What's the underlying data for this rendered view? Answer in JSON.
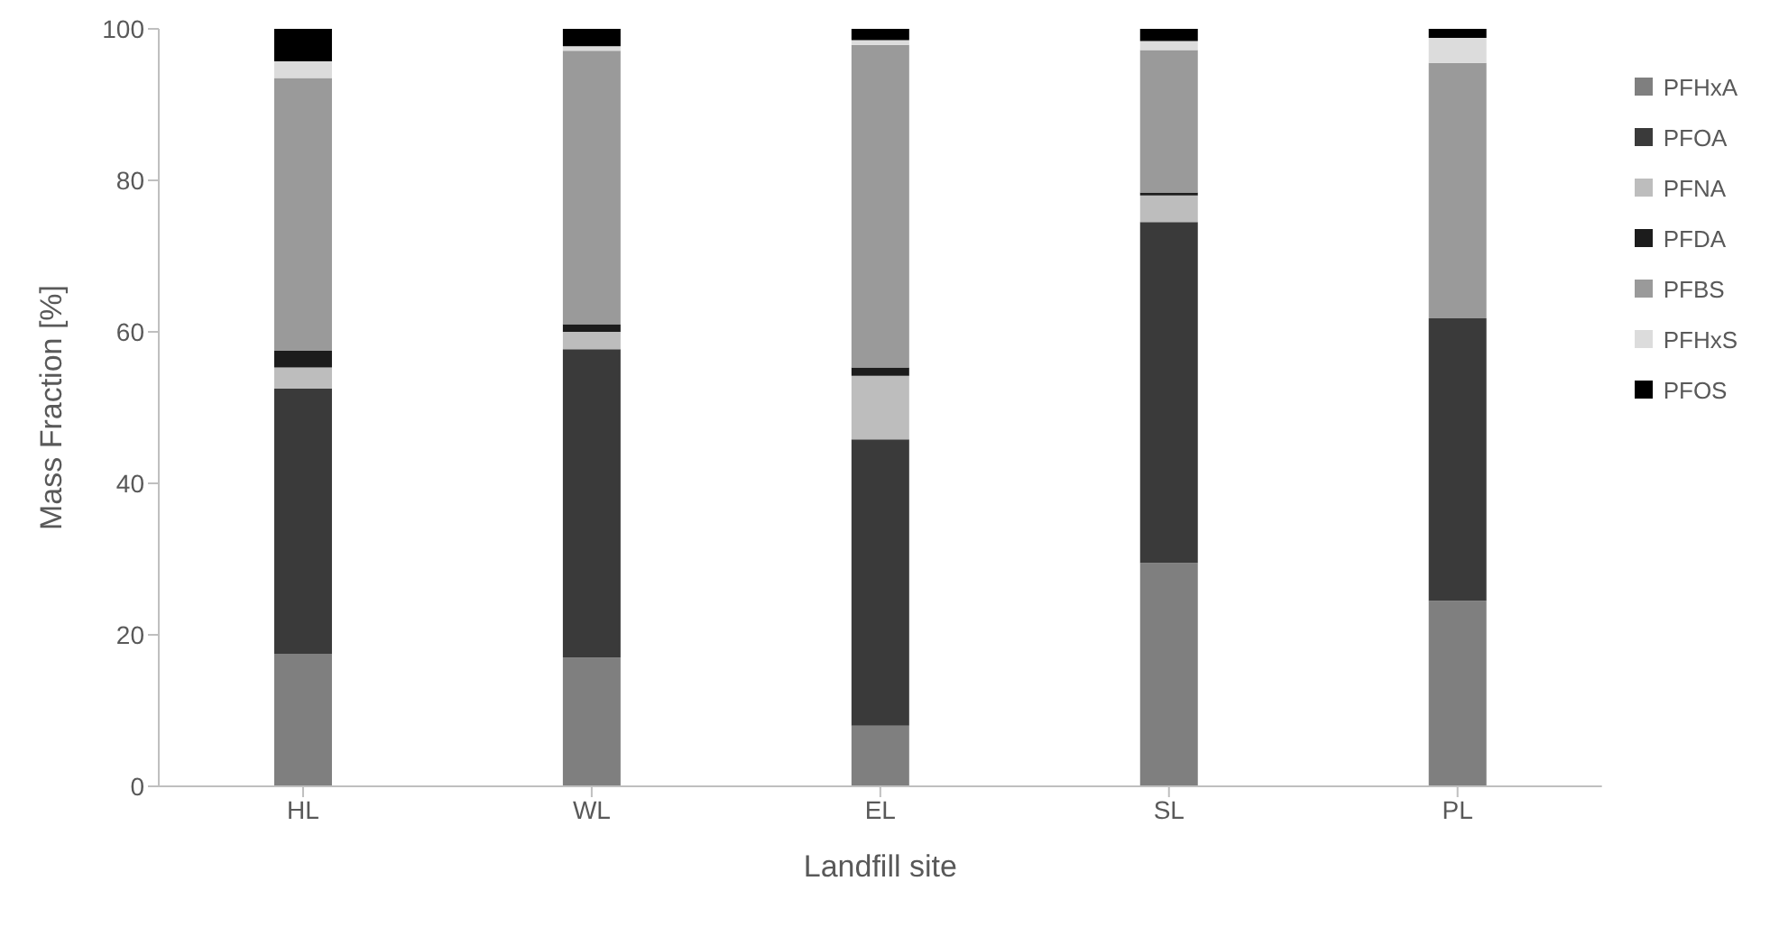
{
  "chart_data": {
    "type": "bar",
    "stacked": true,
    "xlabel": "Landfill site",
    "ylabel": "Mass Fraction [%]",
    "categories": [
      "HL",
      "WL",
      "EL",
      "SL",
      "PL"
    ],
    "series": [
      {
        "name": "PFHxA",
        "color": "#7f7f7f",
        "values": [
          17.5,
          17,
          8,
          29.5,
          24.5
        ]
      },
      {
        "name": "PFOA",
        "color": "#3a3a3a",
        "values": [
          35,
          40.7,
          37.8,
          45,
          37.3
        ]
      },
      {
        "name": "PFNA",
        "color": "#bdbdbd",
        "values": [
          2.8,
          2.3,
          8.4,
          3.5,
          0
        ]
      },
      {
        "name": "PFDA",
        "color": "#1c1c1c",
        "values": [
          2.2,
          1,
          1.1,
          0.4,
          0
        ]
      },
      {
        "name": "PFBS",
        "color": "#9a9a9a",
        "values": [
          36,
          36.1,
          42.6,
          18.8,
          33.7
        ]
      },
      {
        "name": "PFHxS",
        "color": "#dcdcdc",
        "values": [
          2.2,
          0.6,
          0.6,
          1.2,
          3.3
        ]
      },
      {
        "name": "PFOS",
        "color": "#000000",
        "values": [
          4.3,
          2.3,
          1.5,
          1.6,
          1.2
        ]
      }
    ],
    "ylim": [
      0,
      100
    ],
    "yticks": [
      0,
      20,
      40,
      60,
      80,
      100
    ],
    "legend": "right"
  }
}
